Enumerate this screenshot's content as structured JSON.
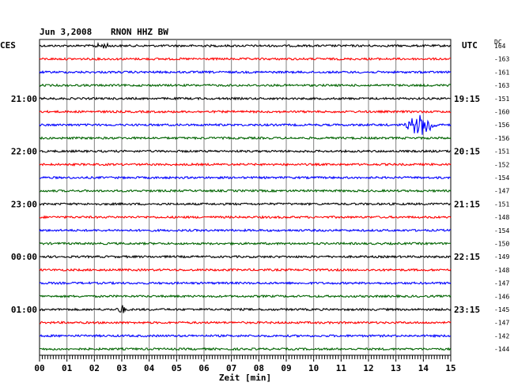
{
  "header": {
    "date": "Jun 3,2008",
    "station": "RNON HHZ BW",
    "left_tz": "CES",
    "right_tz": "UTC",
    "dc_label": "DC"
  },
  "chart_data": {
    "type": "seismogram",
    "xlabel": "Zeit [min]",
    "xlim": [
      0,
      15
    ],
    "x_ticks": [
      "00",
      "01",
      "02",
      "03",
      "04",
      "05",
      "06",
      "07",
      "08",
      "09",
      "10",
      "11",
      "12",
      "13",
      "14",
      "15"
    ],
    "colors": [
      "#000000",
      "#ff0000",
      "#0000ff",
      "#006400"
    ],
    "rows": [
      {
        "dc": "164",
        "left": "",
        "right": ""
      },
      {
        "dc": "-163",
        "left": "",
        "right": ""
      },
      {
        "dc": "-161",
        "left": "",
        "right": ""
      },
      {
        "dc": "-163",
        "left": "",
        "right": ""
      },
      {
        "dc": "-151",
        "left": "21:00",
        "right": "19:15"
      },
      {
        "dc": "-160",
        "left": "",
        "right": ""
      },
      {
        "dc": "-156",
        "left": "",
        "right": ""
      },
      {
        "dc": "-156",
        "left": "",
        "right": ""
      },
      {
        "dc": "-151",
        "left": "22:00",
        "right": "20:15"
      },
      {
        "dc": "-152",
        "left": "",
        "right": ""
      },
      {
        "dc": "-154",
        "left": "",
        "right": ""
      },
      {
        "dc": "-147",
        "left": "",
        "right": ""
      },
      {
        "dc": "-151",
        "left": "23:00",
        "right": "21:15"
      },
      {
        "dc": "-148",
        "left": "",
        "right": ""
      },
      {
        "dc": "-154",
        "left": "",
        "right": ""
      },
      {
        "dc": "-150",
        "left": "",
        "right": ""
      },
      {
        "dc": "-149",
        "left": "00:00",
        "right": "22:15"
      },
      {
        "dc": "-148",
        "left": "",
        "right": ""
      },
      {
        "dc": "-147",
        "left": "",
        "right": ""
      },
      {
        "dc": "-146",
        "left": "",
        "right": ""
      },
      {
        "dc": "-145",
        "left": "01:00",
        "right": "23:15"
      },
      {
        "dc": "-147",
        "left": "",
        "right": ""
      },
      {
        "dc": "-142",
        "left": "",
        "right": ""
      },
      {
        "dc": "-144",
        "left": "",
        "right": ""
      }
    ],
    "events": [
      {
        "row": 0,
        "start_min": 1.9,
        "end_min": 3.0,
        "amplitude": 2.2
      },
      {
        "row": 6,
        "start_min": 13.3,
        "end_min": 15.0,
        "amplitude": 12.0
      },
      {
        "row": 20,
        "start_min": 2.8,
        "end_min": 3.3,
        "amplitude": 5.0
      }
    ]
  }
}
